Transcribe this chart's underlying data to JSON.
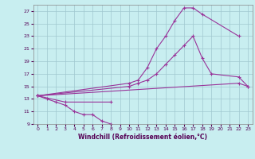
{
  "xlabel": "Windchill (Refroidissement éolien,°C)",
  "bg_color": "#c8eef0",
  "grid_color": "#a0c8d0",
  "line_color": "#993399",
  "xlim": [
    -0.5,
    23.5
  ],
  "ylim": [
    9,
    28
  ],
  "yticks": [
    9,
    11,
    13,
    15,
    17,
    19,
    21,
    23,
    25,
    27
  ],
  "xticks": [
    0,
    1,
    2,
    3,
    4,
    5,
    6,
    7,
    8,
    9,
    10,
    11,
    12,
    13,
    14,
    15,
    16,
    17,
    18,
    19,
    20,
    21,
    22,
    23
  ],
  "series_x": [
    [
      0,
      1,
      2,
      3,
      4,
      5,
      6,
      7,
      8
    ],
    [
      0,
      3,
      8
    ],
    [
      0,
      10,
      11,
      12,
      13,
      14,
      15,
      16,
      17,
      18,
      22
    ],
    [
      0,
      10,
      11,
      12,
      13,
      14,
      15,
      16,
      17,
      18,
      19,
      22,
      23
    ],
    [
      0,
      22,
      23
    ]
  ],
  "series_y": [
    [
      13.5,
      13.0,
      12.5,
      12.0,
      11.0,
      10.5,
      10.5,
      9.5,
      9.0
    ],
    [
      13.5,
      12.5,
      12.5
    ],
    [
      13.5,
      15.5,
      16.0,
      18.0,
      21.0,
      23.0,
      25.5,
      27.5,
      27.5,
      26.5,
      23.0
    ],
    [
      13.5,
      15.0,
      15.5,
      16.0,
      17.0,
      18.5,
      20.0,
      21.5,
      23.0,
      19.5,
      17.0,
      16.5,
      15.0
    ],
    [
      13.5,
      15.5,
      15.0
    ]
  ]
}
